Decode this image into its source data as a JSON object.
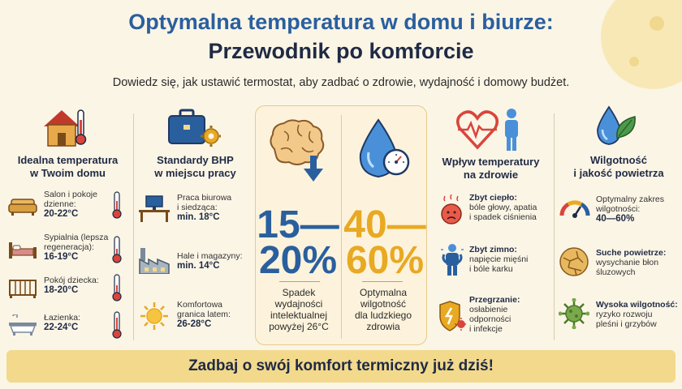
{
  "header": {
    "title_line1": "Optymalna temperatura w domu i biurze:",
    "title_line2": "Przewodnik po komforcie",
    "subtitle": "Dowiedz się, jak ustawić termostat, aby zadbać o zdrowie, wydajność i domowy budżet."
  },
  "home": {
    "title_line1": "Idealna temperatura",
    "title_line2": "w Twoim domu",
    "items": [
      {
        "label1": "Salon i pokoje",
        "label2": "dzienne:",
        "value": "20-22°C",
        "icon": "sofa-icon"
      },
      {
        "label1": "Sypialnia (lepsza",
        "label2": "regeneracja):",
        "value": "16-19°C",
        "icon": "bed-icon"
      },
      {
        "label1": "Pokój dziecka:",
        "label2": "",
        "value": "18-20°C",
        "icon": "crib-icon"
      },
      {
        "label1": "Łazienka:",
        "label2": "",
        "value": "22-24°C",
        "icon": "bathtub-icon"
      }
    ]
  },
  "work": {
    "title_line1": "Standardy BHP",
    "title_line2": "w miejscu pracy",
    "items": [
      {
        "label1": "Praca biurowa",
        "label2": "i siedząca:",
        "value": "min. 18°C",
        "icon": "desk-icon"
      },
      {
        "label1": "Hale i magazyny:",
        "label2": "",
        "value": "min. 14°C",
        "icon": "factory-icon"
      },
      {
        "label1": "Komfortowa",
        "label2": "granica latem:",
        "value": "26-28°C",
        "icon": "sun-icon"
      }
    ]
  },
  "stats": [
    {
      "value": "15—20%",
      "line1": "15—",
      "line2": "20%",
      "desc": [
        "Spadek",
        "wydajności",
        "intelektualnej",
        "powyżej 26°C"
      ],
      "color": "#2a5f9e"
    },
    {
      "value": "40—60%",
      "line1": "40—",
      "line2": "60%",
      "desc": [
        "Optymalna",
        "wilgotność",
        "dla ludzkiego",
        "zdrowia"
      ],
      "color": "#e8a923"
    }
  ],
  "health": {
    "title_line1": "Wpływ temperatury",
    "title_line2": "na zdrowie",
    "items": [
      {
        "title": "Zbyt ciepło:",
        "lines": [
          "bóle głowy, apatia",
          "i spadek ciśnienia"
        ],
        "icon": "hot-face-icon"
      },
      {
        "title": "Zbyt zimno:",
        "lines": [
          "napięcie mięśni",
          "i bóle karku"
        ],
        "icon": "cold-person-icon"
      },
      {
        "title": "Przegrzanie:",
        "lines": [
          "osłabienie",
          "odporności",
          "i infekcje"
        ],
        "icon": "shield-virus-icon"
      }
    ]
  },
  "humidity": {
    "title_line1": "Wilgotność",
    "title_line2": "i jakość powietrza",
    "items": [
      {
        "lines": [
          "Optymalny zakres",
          "wilgotności:"
        ],
        "value": "40—60%",
        "icon": "gauge-icon"
      },
      {
        "title": "Suche powietrze:",
        "lines": [
          "wysychanie błon",
          "śluzowych"
        ],
        "icon": "dry-soil-icon"
      },
      {
        "title": "Wysoka wilgotność:",
        "lines": [
          "ryzyko rozwoju",
          "pleśni i grzybów"
        ],
        "icon": "mold-icon"
      }
    ]
  },
  "footer": {
    "text": "Zadbaj o swój komfort termiczny już dziś!"
  },
  "colors": {
    "blue": "#2a5f9e",
    "orange": "#e8a923",
    "red": "#d9453b",
    "background": "#fbf5e6"
  }
}
